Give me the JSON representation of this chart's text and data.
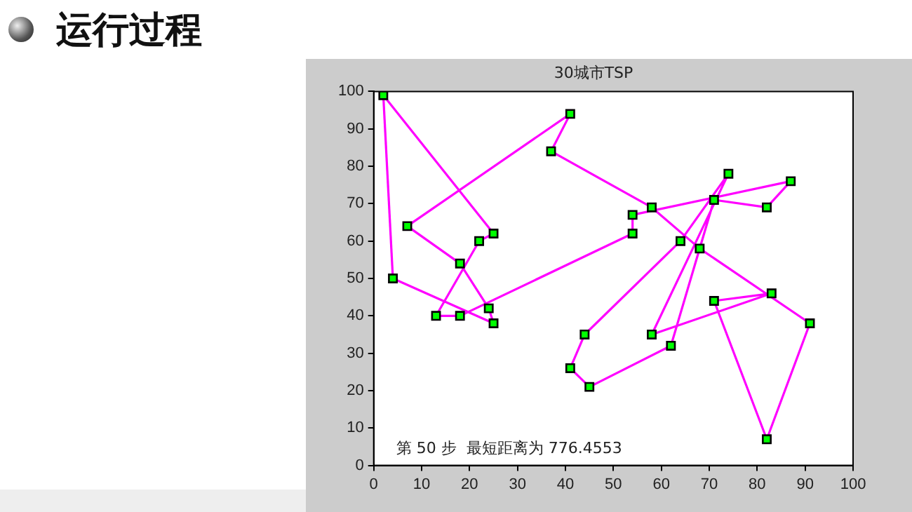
{
  "chart_data": {
    "type": "line",
    "title": "30城市TSP",
    "annotations": [
      "运行过程",
      "第 50 步  最短距离为 776.4553"
    ],
    "xlim": [
      0,
      100
    ],
    "ylim": [
      0,
      100
    ],
    "xticks": [
      0,
      10,
      20,
      30,
      40,
      50,
      60,
      70,
      80,
      90,
      100
    ],
    "yticks": [
      0,
      10,
      20,
      30,
      40,
      50,
      60,
      70,
      80,
      90,
      100
    ],
    "series": [
      {
        "marker": "none",
        "color": "#ff00ff",
        "x": [
          2,
          25,
          22,
          13,
          18,
          54,
          54,
          87,
          82,
          71,
          62,
          45,
          41,
          44,
          64,
          74,
          58,
          83,
          71,
          82,
          91,
          68,
          58,
          37,
          41,
          7,
          18,
          24,
          25,
          4
        ],
        "values": [
          99,
          62,
          60,
          40,
          40,
          62,
          67,
          76,
          69,
          71,
          32,
          21,
          26,
          35,
          60,
          78,
          35,
          46,
          44,
          7,
          38,
          58,
          69,
          84,
          94,
          64,
          54,
          42,
          38,
          50
        ]
      },
      {
        "marker": "none",
        "color": "#ff00ff",
        "x": [
          4,
          2
        ],
        "values": [
          50,
          99
        ]
      },
      {
        "type": "scatter",
        "marker": "square",
        "color": "#00ff00",
        "x": [
          2,
          25,
          22,
          13,
          18,
          54,
          54,
          87,
          82,
          71,
          62,
          45,
          41,
          44,
          64,
          74,
          58,
          83,
          71,
          82,
          91,
          68,
          58,
          37,
          41,
          7,
          18,
          24,
          25,
          4
        ],
        "values": [
          99,
          62,
          60,
          40,
          40,
          62,
          67,
          76,
          69,
          71,
          32,
          21,
          26,
          35,
          60,
          78,
          35,
          46,
          44,
          7,
          38,
          58,
          69,
          84,
          94,
          64,
          54,
          42,
          38,
          50
        ]
      }
    ]
  }
}
